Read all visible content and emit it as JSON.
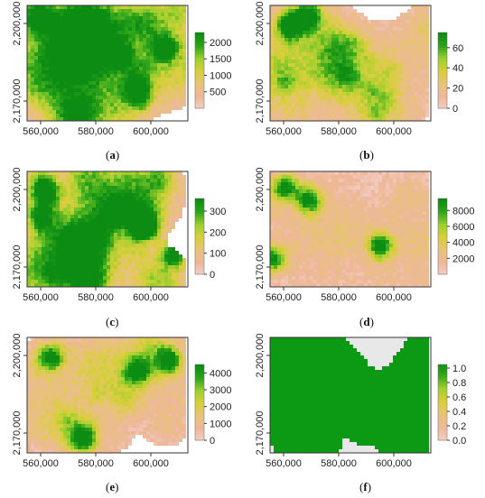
{
  "panels": [
    {
      "id": "a",
      "caption_open": "(",
      "caption_letter": "a",
      "caption_close": ")",
      "x_ticks": [
        "560,000",
        "580,000",
        "600,000"
      ],
      "y_ticks": [
        "2,200,000",
        "2,170,000"
      ],
      "legend": {
        "ticks": [
          "2000",
          "1500",
          "1000",
          "500"
        ],
        "min": 0,
        "max": 2300,
        "values": [
          2000,
          1500,
          1000,
          500
        ]
      },
      "palette": "terrain"
    },
    {
      "id": "b",
      "caption_open": "(",
      "caption_letter": "b",
      "caption_close": ")",
      "x_ticks": [
        "560,000",
        "580,000",
        "600,000"
      ],
      "y_ticks": [
        "2,200,000",
        "2,170,000"
      ],
      "legend": {
        "ticks": [
          "60",
          "40",
          "20",
          "0"
        ],
        "min": 0,
        "max": 75,
        "values": [
          60,
          40,
          20,
          0
        ]
      },
      "palette": "terrain"
    },
    {
      "id": "c",
      "caption_open": "(",
      "caption_letter": "c",
      "caption_close": ")",
      "x_ticks": [
        "560,000",
        "580,000",
        "600,000"
      ],
      "y_ticks": [
        "2,200,000",
        "2,170,000"
      ],
      "legend": {
        "ticks": [
          "300",
          "200",
          "100",
          "0"
        ],
        "min": 0,
        "max": 360,
        "values": [
          300,
          200,
          100,
          0
        ]
      },
      "palette": "terrain"
    },
    {
      "id": "d",
      "caption_open": "(",
      "caption_letter": "d",
      "caption_close": ")",
      "x_ticks": [
        "560,000",
        "580,000",
        "600,000"
      ],
      "y_ticks": [
        "2,200,000",
        "2,170,000"
      ],
      "legend": {
        "ticks": [
          "8000",
          "6000",
          "4000",
          "2000"
        ],
        "min": 0,
        "max": 9500,
        "values": [
          8000,
          6000,
          4000,
          2000
        ]
      },
      "palette": "terrain"
    },
    {
      "id": "e",
      "caption_open": "(",
      "caption_letter": "e",
      "caption_close": ")",
      "x_ticks": [
        "560,000",
        "580,000",
        "600,000"
      ],
      "y_ticks": [
        "2,200,000",
        "2,170,000"
      ],
      "legend": {
        "ticks": [
          "4000",
          "3000",
          "2000",
          "1000",
          "0"
        ],
        "min": 0,
        "max": 4500,
        "values": [
          4000,
          3000,
          2000,
          1000,
          0
        ]
      },
      "palette": "terrain"
    },
    {
      "id": "f",
      "caption_open": "(",
      "caption_letter": "f",
      "caption_close": ")",
      "x_ticks": [
        "560,000",
        "580,000",
        "600,000"
      ],
      "y_ticks": [
        "2,200,000",
        "2,170,000"
      ],
      "legend": {
        "ticks": [
          "1.0",
          "0.8",
          "0.6",
          "0.4",
          "0.2",
          "0.0"
        ],
        "min": 0,
        "max": 1.05,
        "values": [
          1.0,
          0.8,
          0.6,
          0.4,
          0.2,
          0.0
        ]
      },
      "palette": "terrain"
    }
  ],
  "colors": {
    "terrain_stops": [
      "#f3cfc7",
      "#eeb79b",
      "#e8c27a",
      "#d8cf3a",
      "#9fcf2e",
      "#2ea51a",
      "#0c8c13"
    ],
    "frame": "#333333",
    "background_gray": "#e8e8e8"
  }
}
